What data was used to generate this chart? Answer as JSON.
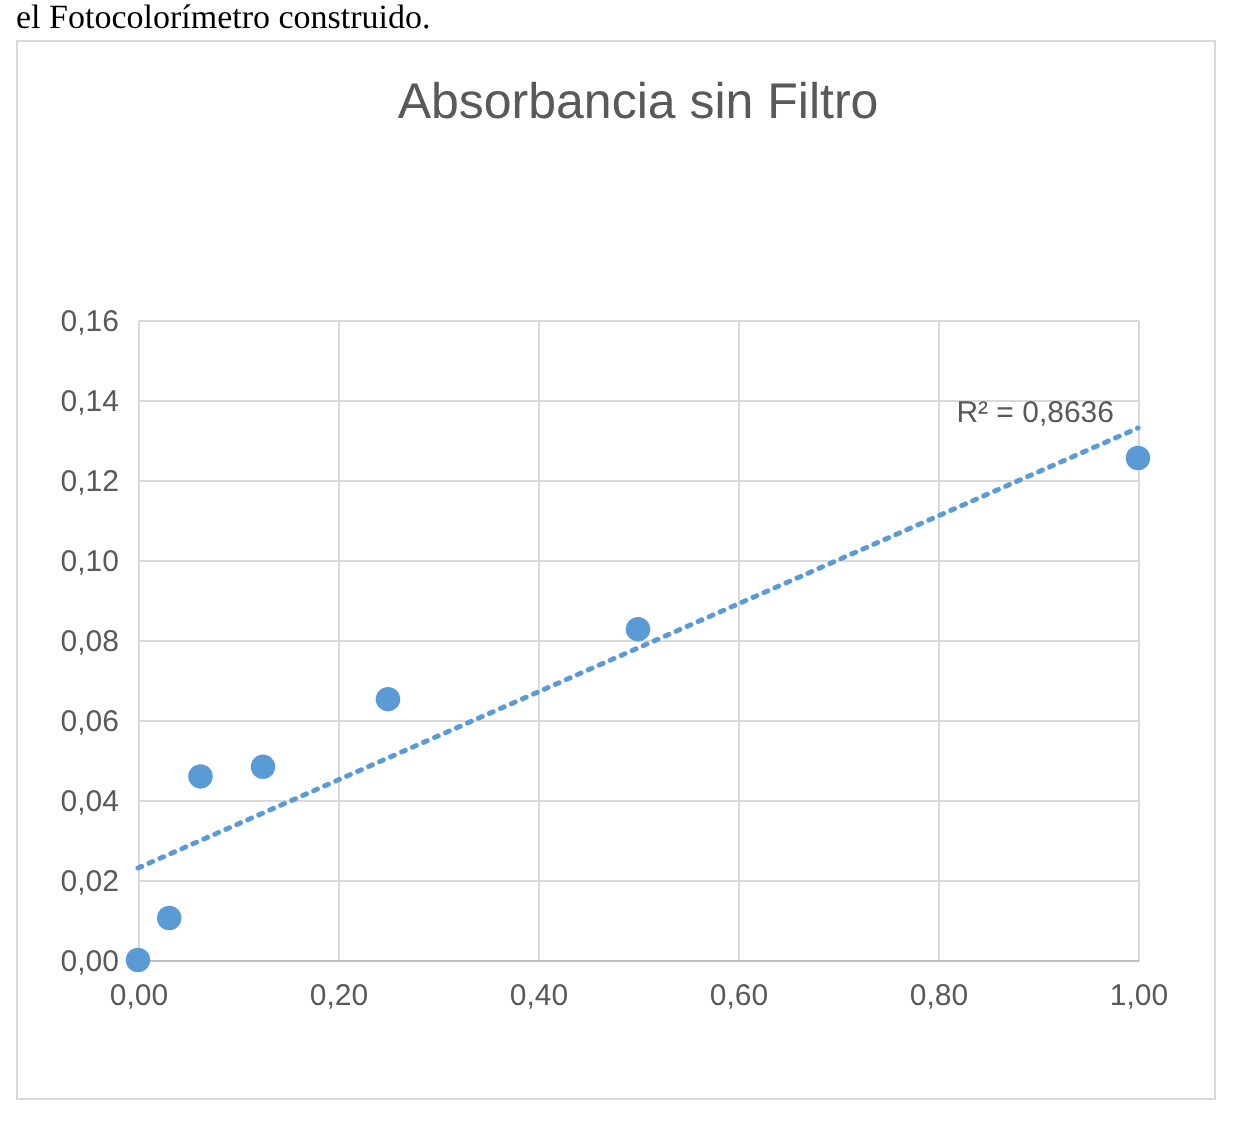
{
  "chart_data": {
    "type": "scatter",
    "title": "Absorbancia sin Filtro",
    "x": [
      0,
      0.03125,
      0.0625,
      0.125,
      0.25,
      0.5,
      1
    ],
    "series": [
      {
        "color": "#5b9bd5",
        "values": [
          0,
          0.0105,
          0.0459,
          0.0483,
          0.0652,
          0.0827,
          0.1255
        ]
      },
      {
        "type": "line",
        "color": "#5b9bd5",
        "x": [
          0,
          1
        ],
        "values": [
          0.023,
          0.133
        ],
        "line_style": "dotted"
      }
    ],
    "annotations": [
      "el Fotocolorímetro construido.",
      "R² = 0,8636"
    ],
    "xlim": [
      0,
      1
    ],
    "xticks": [
      {
        "value": 0,
        "label": "0,00"
      },
      {
        "value": 0.2,
        "label": "0,20"
      },
      {
        "value": 0.4,
        "label": "0,40"
      },
      {
        "value": 0.6,
        "label": "0,60"
      },
      {
        "value": 0.8,
        "label": "0,80"
      },
      {
        "value": 1,
        "label": "1,00"
      }
    ],
    "ylim": [
      0,
      0.16
    ],
    "yticks": [
      {
        "value": 0,
        "label": "0,00"
      },
      {
        "value": 0.02,
        "label": "0,02"
      },
      {
        "value": 0.04,
        "label": "0,04"
      },
      {
        "value": 0.06,
        "label": "0,06"
      },
      {
        "value": 0.08,
        "label": "0,08"
      },
      {
        "value": 0.1,
        "label": "0,10"
      },
      {
        "value": 0.12,
        "label": "0,12"
      },
      {
        "value": 0.14,
        "label": "0,14"
      },
      {
        "value": 0.16,
        "label": "0,16"
      }
    ],
    "grid": true
  }
}
